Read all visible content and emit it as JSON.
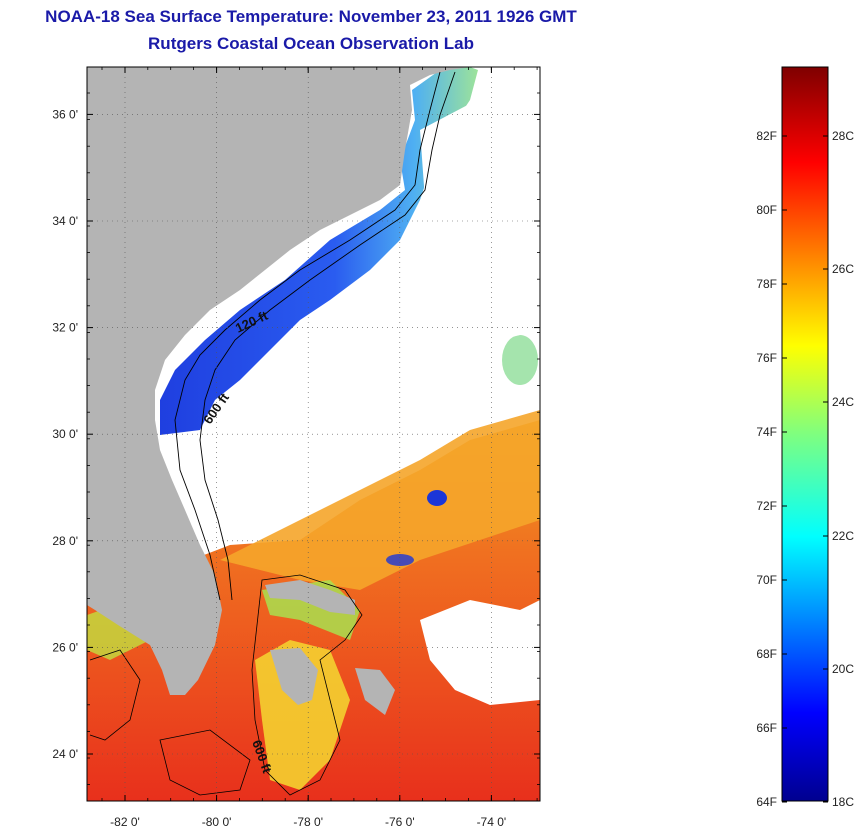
{
  "title": {
    "line1": "NOAA-18 Sea Surface Temperature:  November 23, 2011 1926 GMT",
    "line2": "Rutgers Coastal Ocean Observation Lab"
  },
  "map": {
    "lat_ticks": [
      {
        "lat": 36,
        "label": "36 0'"
      },
      {
        "lat": 34,
        "label": "34 0'"
      },
      {
        "lat": 32,
        "label": "32 0'"
      },
      {
        "lat": 30,
        "label": "30 0'"
      },
      {
        "lat": 28,
        "label": "28 0'"
      },
      {
        "lat": 26,
        "label": "26 0'"
      },
      {
        "lat": 24,
        "label": "24 0'"
      }
    ],
    "lon_ticks": [
      {
        "lon": -82,
        "label": "-82 0'"
      },
      {
        "lon": -80,
        "label": "-80 0'"
      },
      {
        "lon": -78,
        "label": "-78 0'"
      },
      {
        "lon": -76,
        "label": "-76 0'"
      },
      {
        "lon": -74,
        "label": "-74 0'"
      }
    ],
    "contour_labels": [
      "120 ft",
      "600 ft",
      "600 ft"
    ],
    "colors": {
      "land": "#b4b4b4",
      "cloud": "#ffffff",
      "cold": "#1b36d8",
      "warm": "#e8381e",
      "grid": "#555555"
    }
  },
  "colorbar": {
    "f_labels": [
      "82F",
      "80F",
      "78F",
      "76F",
      "74F",
      "72F",
      "70F",
      "68F",
      "66F",
      "64F"
    ],
    "c_labels": [
      "28C",
      "26C",
      "24C",
      "22C",
      "20C",
      "18C"
    ]
  }
}
